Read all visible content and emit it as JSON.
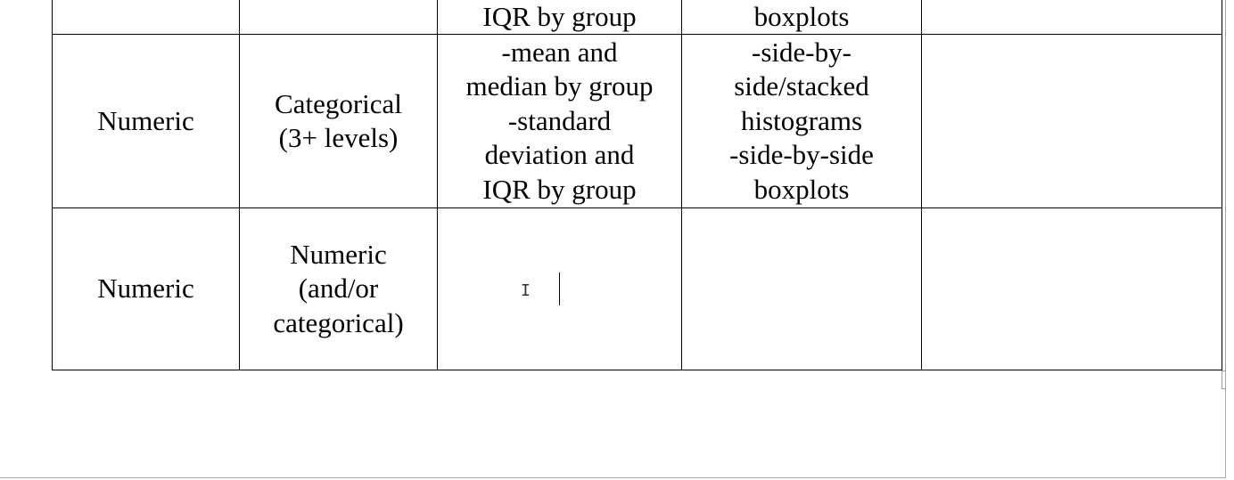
{
  "table": {
    "rows": [
      {
        "cells": [
          "",
          "",
          "IQR by group",
          "boxplots",
          ""
        ]
      },
      {
        "cells": [
          "Numeric",
          "Categorical\n(3+ levels)",
          "-mean and\nmedian by group\n-standard\ndeviation and\nIQR by group",
          "-side-by-\nside/stacked\nhistograms\n-side-by-side\nboxplots",
          ""
        ]
      },
      {
        "cells": [
          "Numeric",
          "Numeric\n(and/or\ncategorical)",
          "",
          "",
          ""
        ]
      }
    ]
  },
  "icons": {
    "mouse_pointer": "i-beam-cursor-icon",
    "text_caret": "text-caret"
  },
  "colors": {
    "border": "#000000",
    "page_background": "#ffffff",
    "page_edge": "#a8a8a8"
  }
}
